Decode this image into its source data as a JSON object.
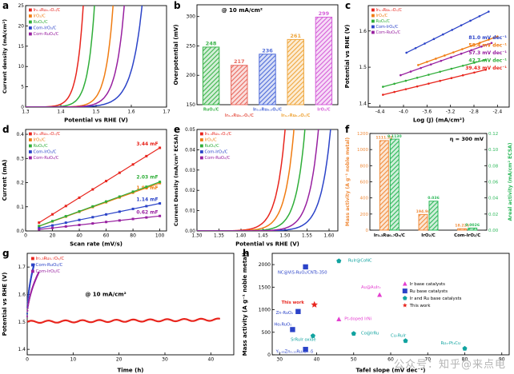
{
  "watermark": "公众号：知乎@来点电",
  "chart_data": {
    "a": {
      "letter": "a",
      "type": "lsv",
      "xlabel": "Potential vs RHE (V)",
      "ylabel": "Current density (mA/cm²)",
      "xlim": [
        1.3,
        1.7
      ],
      "ylim": [
        0,
        25
      ],
      "xticks": [
        "1.3",
        "1.4",
        "1.5",
        "1.6",
        "1.7"
      ],
      "yticks": [
        "0",
        "5",
        "10",
        "15",
        "20",
        "25"
      ],
      "y10": 10,
      "series": [
        {
          "name": "Ir₀.₃Ru₀.₇Oₓ/C",
          "color": "#e8251d",
          "v10": 1.447,
          "tau": 0.018
        },
        {
          "name": "IrO₂/C",
          "color": "#f07c12",
          "v10": 1.529,
          "tau": 0.021
        },
        {
          "name": "RuO₂/C",
          "color": "#2fae39",
          "v10": 1.478,
          "tau": 0.019
        },
        {
          "name": "Com-IrO₂/C",
          "color": "#2b43c8",
          "v10": 1.603,
          "tau": 0.03
        },
        {
          "name": "Com-RuO₂/C",
          "color": "#9820a0",
          "v10": 1.558,
          "tau": 0.024
        }
      ]
    },
    "b": {
      "letter": "b",
      "type": "bar",
      "annotation": "@ 10 mA/cm²",
      "ylabel": "Overpotential (mV)",
      "ylim": [
        150,
        320
      ],
      "yticks": [
        "150",
        "200",
        "250",
        "300"
      ],
      "bars": [
        {
          "label": "RuO₂/C",
          "value": 248,
          "color": "#3cb44b"
        },
        {
          "label": "Ir₀.₃Ru₀.₇Oₓ/C",
          "value": 217,
          "color": "#e8695e"
        },
        {
          "label": "Ir₀.₅Ru₀.₅Oₓ/C",
          "value": 236,
          "color": "#4f6bd8"
        },
        {
          "label": "Ir₀.₇Ru₀.₃Oₓ/C",
          "value": 261,
          "color": "#efa63c"
        },
        {
          "label": "IrO₂/C",
          "value": 299,
          "color": "#d55fd8"
        }
      ]
    },
    "c": {
      "letter": "c",
      "type": "tafel",
      "xlabel": "Log (J) (mA/cm²)",
      "ylabel": "Potential vs RHE (V)",
      "xlim": [
        -4.6,
        -2.2
      ],
      "ylim": [
        1.39,
        1.67
      ],
      "xticks": [
        "-4.4",
        "-4.0",
        "-3.6",
        "-3.2",
        "-2.8",
        "-2.4"
      ],
      "yticks": [
        "1.4",
        "1.5",
        "1.6"
      ],
      "series": [
        {
          "name": "Ir₀.₃Ru₀.₇Oₓ/C",
          "color": "#e8251d",
          "x1": -4.35,
          "y1": 1.424,
          "x2": -2.6,
          "slope": 39.43
        },
        {
          "name": "IrO₂/C",
          "color": "#f07c12",
          "x1": -3.75,
          "y1": 1.506,
          "x2": -2.4,
          "slope": 58.4
        },
        {
          "name": "RuO₂/C",
          "color": "#2fae39",
          "x1": -4.35,
          "y1": 1.446,
          "x2": -2.6,
          "slope": 42.7
        },
        {
          "name": "Com-IrO₂/C",
          "color": "#2b43c8",
          "x1": -3.95,
          "y1": 1.54,
          "x2": -2.55,
          "slope": 81.0
        },
        {
          "name": "Com-RuO₂/C",
          "color": "#9820a0",
          "x1": -4.05,
          "y1": 1.478,
          "x2": -2.5,
          "slope": 57.3
        }
      ],
      "annotations": [
        {
          "text": "81.0 mV dec⁻¹",
          "color": "#2b43c8"
        },
        {
          "text": "58.4 mV dec⁻¹",
          "color": "#f07c12"
        },
        {
          "text": "57.3 mV dec⁻¹",
          "color": "#9820a0"
        },
        {
          "text": "42.7 mV dec⁻¹",
          "color": "#2fae39"
        },
        {
          "text": "39.43 mV dec⁻¹",
          "color": "#e8251d"
        }
      ]
    },
    "d": {
      "letter": "d",
      "type": "cdl",
      "xlabel": "Scan rate (mV/s)",
      "ylabel": "Current (mA)",
      "xlim": [
        0,
        105
      ],
      "ylim": [
        0,
        0.42
      ],
      "xticks": [
        "0",
        "20",
        "40",
        "60",
        "80",
        "100"
      ],
      "yticks": [
        "0.0",
        "0.1",
        "0.2",
        "0.3",
        "0.4"
      ],
      "scan_rates": [
        10,
        20,
        30,
        40,
        50,
        60,
        70,
        80,
        90,
        100
      ],
      "series": [
        {
          "name": "Ir₀.₃Ru₀.₇Oₓ/C",
          "color": "#e8251d",
          "cdl_mF": 3.44,
          "label": "3.44 mF",
          "label_dy": -3
        },
        {
          "name": "IrO₂/C",
          "color": "#f07c12",
          "cdl_mF": 1.98,
          "label": "1.98 mF",
          "label_dy": 8
        },
        {
          "name": "RuO₂/C",
          "color": "#2fae39",
          "cdl_mF": 2.03,
          "label": "2.03 mF",
          "label_dy": -4
        },
        {
          "name": "Com-IrO₂/C",
          "color": "#2b43c8",
          "cdl_mF": 1.14,
          "label": "1.14 mF",
          "label_dy": -3
        },
        {
          "name": "Com-RuO₂/C",
          "color": "#9820a0",
          "cdl_mF": 0.62,
          "label": "0.62 mF",
          "label_dy": -3
        }
      ]
    },
    "e": {
      "letter": "e",
      "type": "lsv",
      "xlabel": "Potential vs RHE (V)",
      "ylabel": "Current Density (mA/cm² ECSA)",
      "xlim": [
        1.3,
        1.62
      ],
      "ylim": [
        0,
        0.05
      ],
      "xticks": [
        "1.30",
        "1.35",
        "1.40",
        "1.45",
        "1.50",
        "1.55",
        "1.60"
      ],
      "yticks": [
        "0.00",
        "0.01",
        "0.02",
        "0.03",
        "0.04",
        "0.05"
      ],
      "y10": 0.01,
      "series": [
        {
          "name": "Ir₀.₃Ru₀.₇Oₓ/C",
          "color": "#e8251d",
          "v10": 1.468,
          "tau": 0.02
        },
        {
          "name": "IrO₂/C",
          "color": "#f07c12",
          "v10": 1.488,
          "tau": 0.02
        },
        {
          "name": "RuO₂/C",
          "color": "#2fae39",
          "v10": 1.513,
          "tau": 0.02
        },
        {
          "name": "Com-IrO₂/C",
          "color": "#2b43c8",
          "v10": 1.568,
          "tau": 0.022
        },
        {
          "name": "Com-RuO₂/C",
          "color": "#9820a0",
          "v10": 1.542,
          "tau": 0.021
        }
      ]
    },
    "f": {
      "letter": "f",
      "type": "dualbar",
      "annotation": "η = 300 mV",
      "ylabel_left": "Mass activity (A g⁻¹ noble metal)",
      "ylabel_right": "Areal activity (mA/cm² ECSA)",
      "color_left": "#f08c3c",
      "color_right": "#2db85a",
      "ylim_left": [
        0,
        1200
      ],
      "yticks_left": [
        "0",
        "200",
        "400",
        "600",
        "800",
        "1000",
        "1200"
      ],
      "ylim_right": [
        0,
        0.12
      ],
      "yticks_right": [
        "0.00",
        "0.02",
        "0.04",
        "0.06",
        "0.08",
        "0.10",
        "0.12"
      ],
      "categories": [
        {
          "label": "Ir₀.₃Ru₀.₇Oₓ/C",
          "mass": 1111.32,
          "mass_label": "1111.32",
          "areal": 0.113,
          "areal_label": "0.1130"
        },
        {
          "label": "IrO₂/C",
          "mass": 194.94,
          "mass_label": "194.94",
          "areal": 0.036,
          "areal_label": "0.036"
        },
        {
          "label": "Com-IrO₂/C",
          "mass": 18.226,
          "mass_label": "18.226",
          "areal": 0.0026,
          "areal_label": "0.0026"
        }
      ]
    },
    "g": {
      "letter": "g",
      "type": "stability",
      "annotation": "@ 10 mA/cm²",
      "xlabel": "Time (h)",
      "ylabel": "Potential vs RHE (V)",
      "xlim": [
        0,
        45
      ],
      "ylim": [
        1.38,
        1.75
      ],
      "xticks": [
        "0",
        "10",
        "20",
        "30",
        "40"
      ],
      "yticks": [
        "1.4",
        "1.5",
        "1.6",
        "1.7"
      ],
      "series": [
        {
          "name": "Ir₀.₃Ru₀.₇Oₓ/C",
          "color": "#e8251d",
          "kind": "flat",
          "y0": 1.5,
          "t_end": 42
        },
        {
          "name": "Com-RuO₂/C",
          "color": "#2b43c8",
          "kind": "rise",
          "y0": 1.53,
          "y1": 1.71,
          "t_end": 1.5
        },
        {
          "name": "Com-IrO₂/C",
          "color": "#9820a0",
          "kind": "rise",
          "y0": 1.52,
          "y1": 1.68,
          "t_end": 2.5
        }
      ]
    },
    "h": {
      "letter": "h",
      "type": "scatter",
      "xlabel": "Tafel slope (mV dec⁻¹)",
      "ylabel": "Mass activity (A g⁻¹ noble metal)",
      "xlim": [
        28,
        92
      ],
      "ylim": [
        0,
        2250
      ],
      "xticks": [
        "30",
        "40",
        "50",
        "60",
        "70",
        "80",
        "90"
      ],
      "yticks": [
        "0",
        "500",
        "1000",
        "1500",
        "2000"
      ],
      "legend_pos": [
        0.56,
        0.3
      ],
      "groups": [
        {
          "name": "Ir base catalysts",
          "color": "#e43fd0",
          "marker": "triangle"
        },
        {
          "name": "Ru base catalysts",
          "color": "#2b43c8",
          "marker": "square"
        },
        {
          "name": "Ir and Ru base catalysts",
          "color": "#11a3a0",
          "marker": "pentagon"
        },
        {
          "name": "This work",
          "color": "#e8251d",
          "marker": "star"
        }
      ],
      "points": [
        {
          "label": "RuIr@CoNC",
          "x": 46,
          "y": 2080,
          "group": 2,
          "lx": 48.5,
          "ly": 2060
        },
        {
          "label": "NC@ViS-RuO₂/CNTs-350",
          "x": 37,
          "y": 1950,
          "group": 1,
          "lx": 29.5,
          "ly": 1800
        },
        {
          "label": "Au@AuIr₂",
          "x": 57,
          "y": 1330,
          "group": 0,
          "lx": 52,
          "ly": 1470
        },
        {
          "label": "This work",
          "x": 39.4,
          "y": 1111,
          "group": 3,
          "lx": 30.5,
          "ly": 1130
        },
        {
          "label": "Zn-RuO₂",
          "x": 35,
          "y": 960,
          "group": 1,
          "lx": 29,
          "ly": 900
        },
        {
          "label": "Pt-doped IrNi",
          "x": 46,
          "y": 790,
          "group": 0,
          "lx": 47.5,
          "ly": 775
        },
        {
          "label": "Ho₂RuO₅",
          "x": 33.5,
          "y": 560,
          "group": 1,
          "lx": 28.5,
          "ly": 645
        },
        {
          "label": "Co@IrRu",
          "x": 50,
          "y": 470,
          "group": 2,
          "lx": 52,
          "ly": 450
        },
        {
          "label": "SrRuIr oxide",
          "x": 39,
          "y": 420,
          "group": 2,
          "lx": 33,
          "ly": 310
        },
        {
          "label": "Cu-RuIr",
          "x": 64,
          "y": 310,
          "group": 2,
          "lx": 60,
          "ly": 395
        },
        {
          "label": "Y₁.₈₅Zn₀.₁₅Ru₂O₇₋δ",
          "x": 37,
          "y": 120,
          "group": 1,
          "lx": 29,
          "ly": 45
        },
        {
          "label": "Ru₁-Pt₃Cu",
          "x": 80,
          "y": 140,
          "group": 2,
          "lx": 73.5,
          "ly": 230
        }
      ]
    }
  }
}
